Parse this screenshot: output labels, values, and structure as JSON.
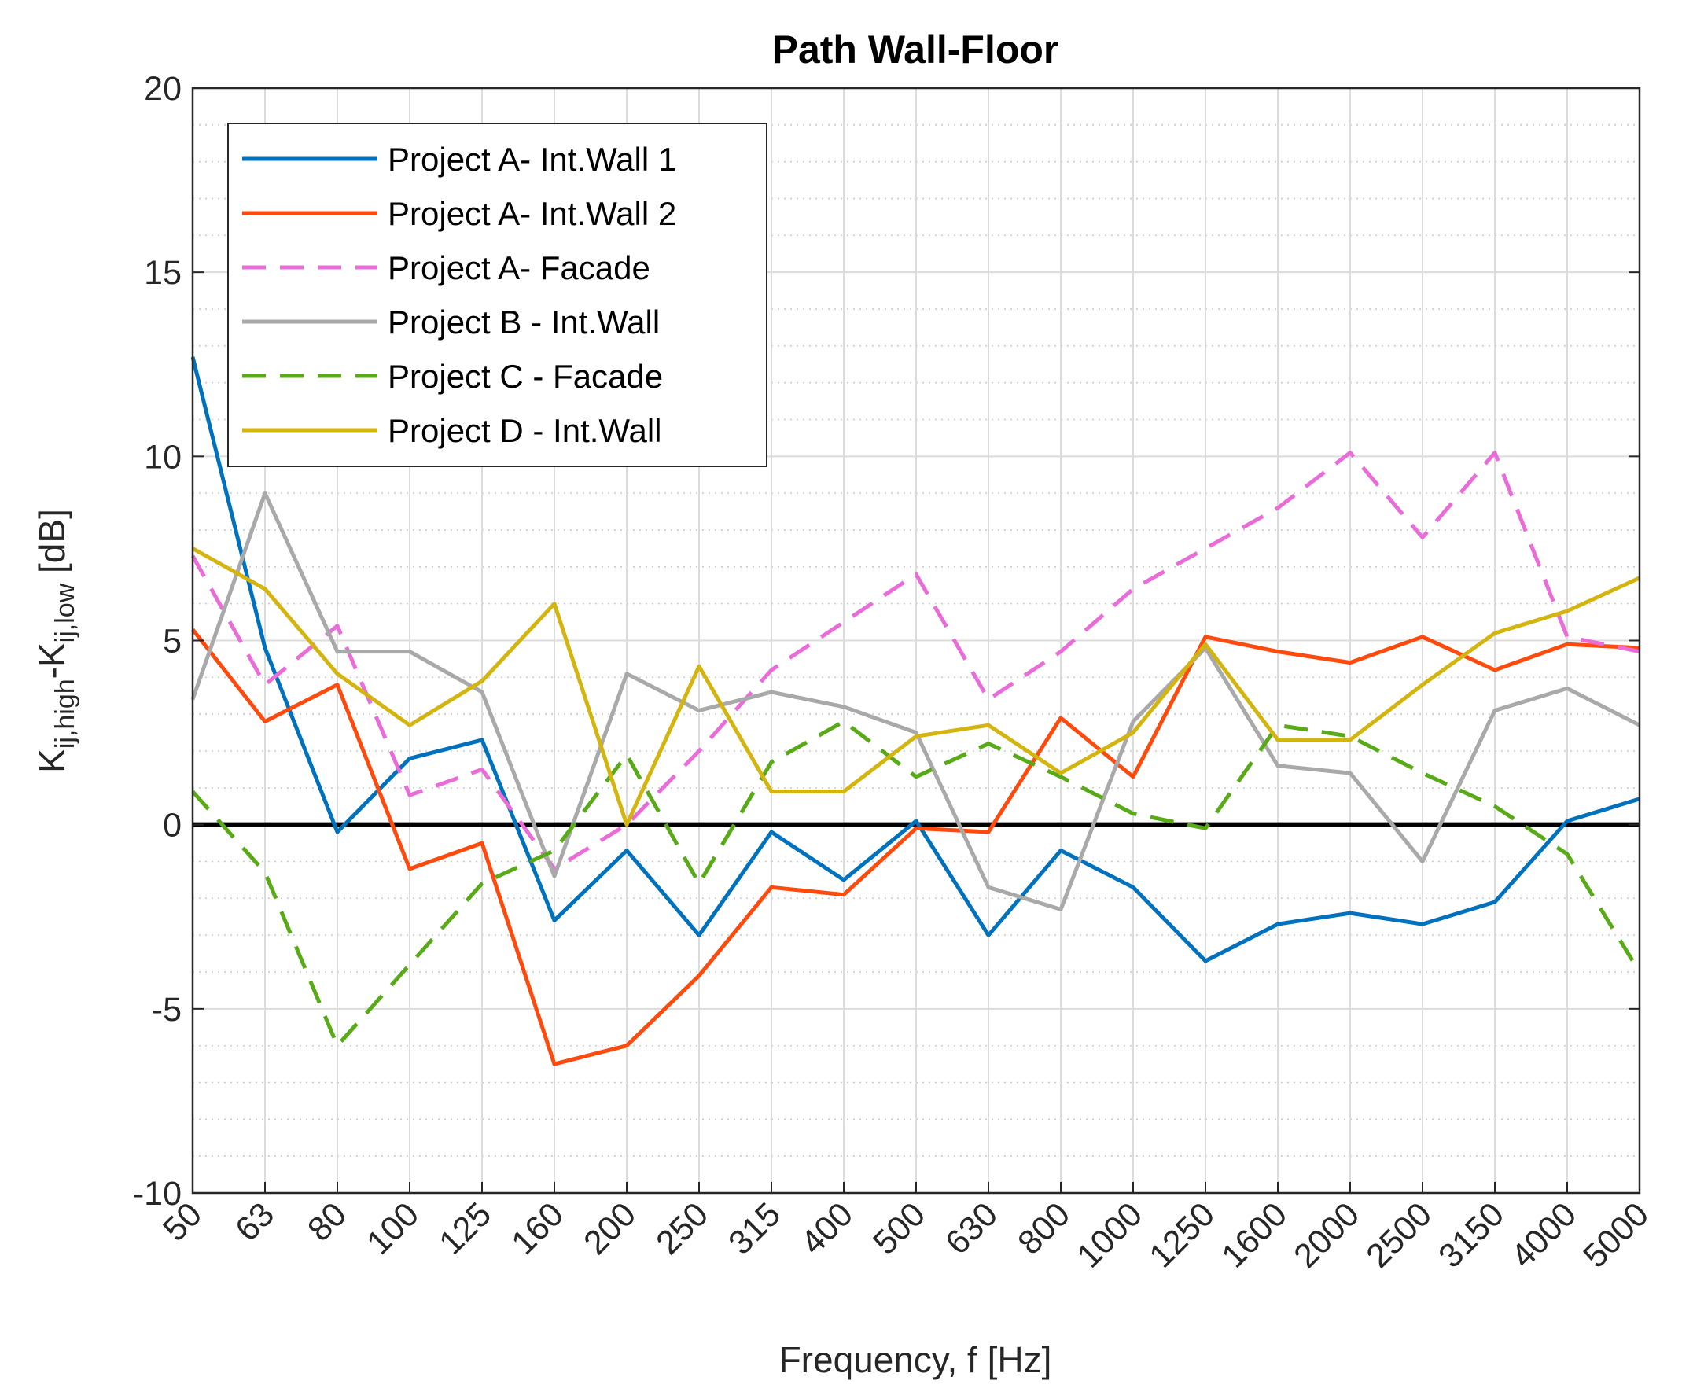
{
  "chart_data": {
    "type": "line",
    "title": "Path Wall-Floor",
    "xlabel": "Frequency, f [Hz]",
    "ylabel": {
      "base1": "K",
      "sub1": "ij,high",
      "mid": "-K",
      "sub2": "ij,low",
      "unit": " [dB]"
    },
    "ylim": [
      -10,
      20
    ],
    "yticks": [
      -10,
      -5,
      0,
      5,
      10,
      15,
      20
    ],
    "yticks_labels": [
      "-10",
      "-5",
      "0",
      "5",
      "10",
      "15",
      "20"
    ],
    "categories": [
      "50",
      "63",
      "80",
      "100",
      "125",
      "160",
      "200",
      "250",
      "315",
      "400",
      "500",
      "630",
      "800",
      "1000",
      "1250",
      "1600",
      "2000",
      "2500",
      "3150",
      "4000",
      "5000"
    ],
    "grid": true,
    "minor_grid": true,
    "legend_position": "top-left",
    "reference_line": {
      "y": 0,
      "color": "#000000"
    },
    "series": [
      {
        "name": "Project A- Int.Wall 1",
        "color": "#0072BD",
        "dash": "solid",
        "values": [
          12.7,
          4.8,
          -0.2,
          1.8,
          2.3,
          -2.6,
          -0.7,
          -3.0,
          -0.2,
          -1.5,
          0.1,
          -3.0,
          -0.7,
          -1.7,
          -3.7,
          -2.7,
          -2.4,
          -2.7,
          -2.1,
          0.1,
          0.7
        ]
      },
      {
        "name": "Project A- Int.Wall 2",
        "color": "#FF4A0D",
        "dash": "solid",
        "values": [
          5.3,
          2.8,
          3.8,
          -1.2,
          -0.5,
          -6.5,
          -6.0,
          -4.1,
          -1.7,
          -1.9,
          -0.1,
          -0.2,
          2.9,
          1.3,
          5.1,
          4.7,
          4.4,
          5.1,
          4.2,
          4.9,
          4.8
        ]
      },
      {
        "name": "Project A- Facade",
        "color": "#E96CD8",
        "dash": "dashed",
        "values": [
          7.3,
          3.8,
          5.4,
          0.8,
          1.5,
          -1.2,
          0.0,
          2.0,
          4.2,
          5.5,
          6.8,
          3.4,
          4.7,
          6.4,
          7.5,
          8.6,
          10.1,
          7.8,
          10.1,
          5.1,
          4.7
        ]
      },
      {
        "name": "Project B - Int.Wall",
        "color": "#A9A9A9",
        "dash": "solid",
        "values": [
          3.4,
          9.0,
          4.7,
          4.7,
          3.6,
          -1.4,
          4.1,
          3.1,
          3.6,
          3.2,
          2.5,
          -1.7,
          -2.3,
          2.8,
          4.8,
          1.6,
          1.4,
          -1.0,
          3.1,
          3.7,
          2.7
        ]
      },
      {
        "name": "Project C - Facade",
        "color": "#59AA17",
        "dash": "dashed",
        "values": [
          0.9,
          -1.3,
          -6.0,
          -3.8,
          -1.6,
          -0.7,
          1.9,
          -1.6,
          1.7,
          2.8,
          1.3,
          2.2,
          1.3,
          0.3,
          -0.1,
          2.7,
          2.4,
          1.4,
          0.5,
          -0.8,
          -4.0
        ]
      },
      {
        "name": "Project D - Int.Wall",
        "color": "#D4B40F",
        "dash": "solid",
        "values": [
          7.5,
          6.4,
          4.1,
          2.7,
          3.9,
          6.0,
          0.0,
          4.3,
          0.9,
          0.9,
          2.4,
          2.7,
          1.4,
          2.5,
          4.9,
          2.3,
          2.3,
          3.8,
          5.2,
          5.8,
          6.7
        ]
      }
    ]
  }
}
